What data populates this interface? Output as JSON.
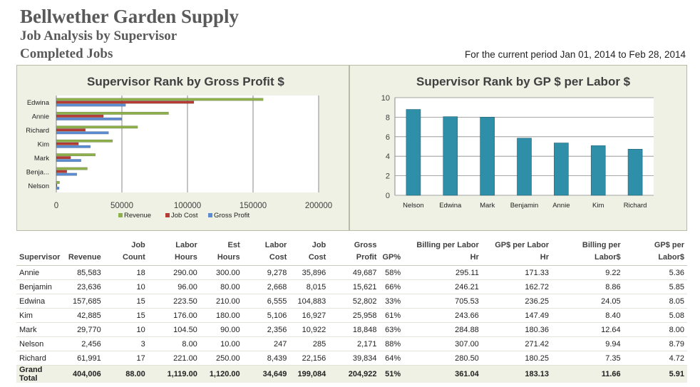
{
  "header": {
    "company": "Bellwether Garden Supply",
    "report_title": "Job Analysis by Supervisor",
    "report_subtitle": "Completed Jobs",
    "period": "For the current period Jan 01, 2014 to Feb 28, 2014"
  },
  "colors": {
    "revenue": "#8db04b",
    "job_cost": "#b53b35",
    "gross_profit": "#5b8bd0",
    "gp_per_labor": "#2f8fa8",
    "panel_bg": "#eef1e4"
  },
  "chart_data": [
    {
      "type": "bar",
      "orientation": "horizontal",
      "title": "Supervisor Rank by Gross Profit $",
      "categories": [
        "Edwina",
        "Annie",
        "Richard",
        "Kim",
        "Mark",
        "Benja...",
        "Nelson"
      ],
      "series": [
        {
          "name": "Revenue",
          "values": [
            157685,
            85583,
            61991,
            42885,
            29770,
            23636,
            2456
          ]
        },
        {
          "name": "Job Cost",
          "values": [
            104883,
            35896,
            22156,
            16927,
            10922,
            8015,
            285
          ]
        },
        {
          "name": "Gross Profit",
          "values": [
            52802,
            49687,
            39834,
            25958,
            18848,
            15621,
            2171
          ]
        }
      ],
      "xlim": [
        0,
        200000
      ],
      "xticks": [
        "0",
        "50000",
        "100000",
        "150000",
        "200000"
      ],
      "grid": true,
      "legend": "bottom"
    },
    {
      "type": "bar",
      "title": "Supervisor Rank by GP $ per Labor $",
      "categories": [
        "Nelson",
        "Edwina",
        "Mark",
        "Benjamin",
        "Annie",
        "Kim",
        "Richard"
      ],
      "values": [
        8.79,
        8.05,
        8.0,
        5.85,
        5.36,
        5.08,
        4.72
      ],
      "ylim": [
        0,
        10
      ],
      "yticks": [
        "0",
        "2",
        "4",
        "6",
        "8",
        "10"
      ],
      "grid": true
    }
  ],
  "table": {
    "columns": [
      {
        "label": "Supervisor",
        "align": "txt"
      },
      {
        "label": "Revenue",
        "align": "num"
      },
      {
        "label": "Job Count",
        "align": "num"
      },
      {
        "label": "Labor Hours",
        "align": "num"
      },
      {
        "label": "Est Hours",
        "align": "num"
      },
      {
        "label": "Labor Cost",
        "align": "num"
      },
      {
        "label": "Job Cost",
        "align": "num"
      },
      {
        "label": "Gross Profit",
        "align": "num"
      },
      {
        "label": "GP%",
        "align": "num"
      },
      {
        "label": "Billing per Labor Hr",
        "align": "num"
      },
      {
        "label": "GP$ per Labor Hr",
        "align": "num"
      },
      {
        "label": "Billing per Labor$",
        "align": "num"
      },
      {
        "label": "GP$ per Labor$",
        "align": "num"
      }
    ],
    "rows": [
      [
        "Annie",
        "85,583",
        "18",
        "290.00",
        "300.00",
        "9,278",
        "35,896",
        "49,687",
        "58%",
        "295.11",
        "171.33",
        "9.22",
        "5.36"
      ],
      [
        "Benjamin",
        "23,636",
        "10",
        "96.00",
        "80.00",
        "2,668",
        "8,015",
        "15,621",
        "66%",
        "246.21",
        "162.72",
        "8.86",
        "5.85"
      ],
      [
        "Edwina",
        "157,685",
        "15",
        "223.50",
        "210.00",
        "6,555",
        "104,883",
        "52,802",
        "33%",
        "705.53",
        "236.25",
        "24.05",
        "8.05"
      ],
      [
        "Kim",
        "42,885",
        "15",
        "176.00",
        "180.00",
        "5,106",
        "16,927",
        "25,958",
        "61%",
        "243.66",
        "147.49",
        "8.40",
        "5.08"
      ],
      [
        "Mark",
        "29,770",
        "10",
        "104.50",
        "90.00",
        "2,356",
        "10,922",
        "18,848",
        "63%",
        "284.88",
        "180.36",
        "12.64",
        "8.00"
      ],
      [
        "Nelson",
        "2,456",
        "3",
        "8.00",
        "10.00",
        "247",
        "285",
        "2,171",
        "88%",
        "307.00",
        "271.42",
        "9.94",
        "8.79"
      ],
      [
        "Richard",
        "61,991",
        "17",
        "221.00",
        "250.00",
        "8,439",
        "22,156",
        "39,834",
        "64%",
        "280.50",
        "180.25",
        "7.35",
        "4.72"
      ]
    ],
    "total": [
      "Grand Total",
      "404,006",
      "88.00",
      "1,119.00",
      "1,120.00",
      "34,649",
      "199,084",
      "204,922",
      "51%",
      "361.04",
      "183.13",
      "11.66",
      "5.91"
    ]
  }
}
